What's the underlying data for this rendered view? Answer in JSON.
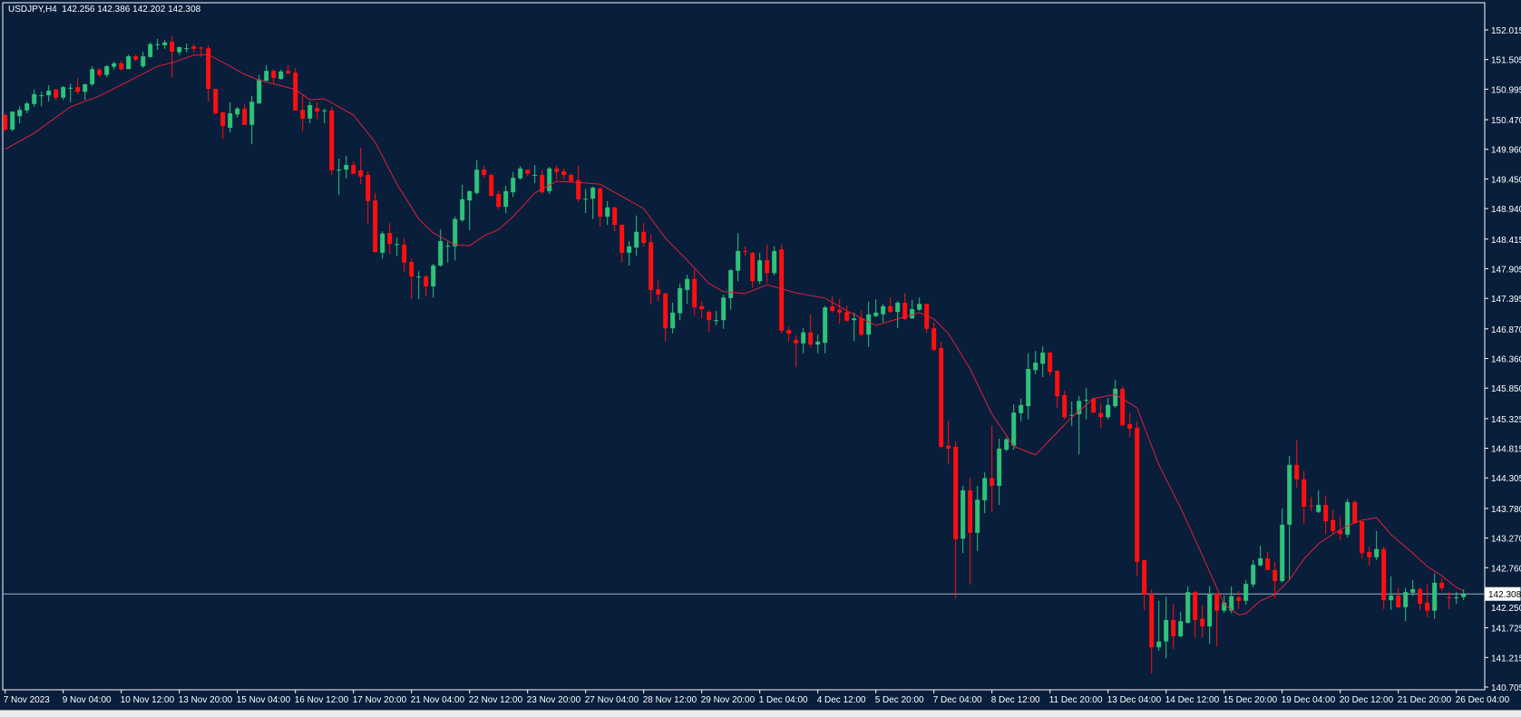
{
  "header": {
    "symbol": "USDJPY,H4",
    "ohlc_text": "142.256 142.386 142.202 142.308"
  },
  "colors": {
    "background": "#081e3b",
    "bull": "#2fc27a",
    "bear": "#ff1010",
    "ma_line": "#e0203a",
    "price_line": "#9fb0c0",
    "axis": "#ffffff"
  },
  "chart_data": {
    "type": "candlestick",
    "title": "USDJPY,H4",
    "grid": false,
    "ylim": [
      140.705,
      152.015
    ],
    "y_ticks": [
      "152.015",
      "151.505",
      "150.995",
      "150.470",
      "149.960",
      "149.450",
      "148.940",
      "148.415",
      "147.905",
      "147.395",
      "146.870",
      "146.360",
      "145.850",
      "145.325",
      "144.815",
      "144.305",
      "143.780",
      "143.270",
      "142.760",
      "142.250",
      "141.725",
      "141.215",
      "140.705"
    ],
    "x_tick_every_bars": 8,
    "x_ticks": [
      "7 Nov 2023",
      "9 Nov 04:00",
      "10 Nov 12:00",
      "13 Nov 20:00",
      "15 Nov 04:00",
      "16 Nov 12:00",
      "17 Nov 20:00",
      "21 Nov 04:00",
      "22 Nov 12:00",
      "23 Nov 20:00",
      "27 Nov 04:00",
      "28 Nov 12:00",
      "29 Nov 20:00",
      "1 Dec 04:00",
      "4 Dec 12:00",
      "5 Dec 20:00",
      "7 Dec 04:00",
      "8 Dec 12:00",
      "11 Dec 20:00",
      "13 Dec 04:00",
      "14 Dec 12:00",
      "15 Dec 20:00",
      "19 Dec 04:00",
      "20 Dec 12:00",
      "21 Dec 20:00",
      "26 Dec 04:00"
    ],
    "last_price": "142.308",
    "ohlc_fields": [
      "open",
      "high",
      "low",
      "close"
    ],
    "candles": [
      [
        150.55,
        150.58,
        150.27,
        150.3
      ],
      [
        150.3,
        150.61,
        150.27,
        150.61
      ],
      [
        150.53,
        150.7,
        150.41,
        150.64
      ],
      [
        150.63,
        150.78,
        150.58,
        150.75
      ],
      [
        150.74,
        150.99,
        150.69,
        150.91
      ],
      [
        150.89,
        150.95,
        150.7,
        150.89
      ],
      [
        150.89,
        151.06,
        150.78,
        150.97
      ],
      [
        150.99,
        151.0,
        150.8,
        150.85
      ],
      [
        150.85,
        151.05,
        150.81,
        151.03
      ],
      [
        151.02,
        151.09,
        150.77,
        151.02
      ],
      [
        151.03,
        151.19,
        150.91,
        150.95
      ],
      [
        150.95,
        151.09,
        150.81,
        151.08
      ],
      [
        151.08,
        151.39,
        151.05,
        151.34
      ],
      [
        151.33,
        151.36,
        151.2,
        151.24
      ],
      [
        151.24,
        151.41,
        151.2,
        151.39
      ],
      [
        151.38,
        151.47,
        151.33,
        151.44
      ],
      [
        151.44,
        151.48,
        151.31,
        151.34
      ],
      [
        151.34,
        151.59,
        151.34,
        151.56
      ],
      [
        151.56,
        151.59,
        151.48,
        151.5
      ],
      [
        151.39,
        151.64,
        151.36,
        151.56
      ],
      [
        151.55,
        151.8,
        151.53,
        151.77
      ],
      [
        151.77,
        151.86,
        151.67,
        151.77
      ],
      [
        151.75,
        151.84,
        151.69,
        151.8
      ],
      [
        151.81,
        151.91,
        151.19,
        151.64
      ],
      [
        151.63,
        151.72,
        151.58,
        151.72
      ],
      [
        151.7,
        151.78,
        151.63,
        151.7
      ],
      [
        151.73,
        151.77,
        151.63,
        151.69
      ],
      [
        151.71,
        151.73,
        151.55,
        151.7
      ],
      [
        151.7,
        151.75,
        150.78,
        151.0
      ],
      [
        151.0,
        151.0,
        150.56,
        150.58
      ],
      [
        150.6,
        150.6,
        150.14,
        150.36
      ],
      [
        150.33,
        150.77,
        150.25,
        150.58
      ],
      [
        150.56,
        150.69,
        150.5,
        150.66
      ],
      [
        150.66,
        150.74,
        150.38,
        150.38
      ],
      [
        150.38,
        150.88,
        150.05,
        150.78
      ],
      [
        150.75,
        151.24,
        150.74,
        151.16
      ],
      [
        151.14,
        151.41,
        151.13,
        151.31
      ],
      [
        151.31,
        151.34,
        151.09,
        151.19
      ],
      [
        151.17,
        151.33,
        151.16,
        151.3
      ],
      [
        151.31,
        151.41,
        151.24,
        151.27
      ],
      [
        151.28,
        151.36,
        150.63,
        150.63
      ],
      [
        150.64,
        150.89,
        150.27,
        150.49
      ],
      [
        150.49,
        150.78,
        150.41,
        150.72
      ],
      [
        150.67,
        150.77,
        150.47,
        150.61
      ],
      [
        150.63,
        150.66,
        150.41,
        150.63
      ],
      [
        150.63,
        150.69,
        149.52,
        149.6
      ],
      [
        149.61,
        149.8,
        149.18,
        149.61
      ],
      [
        149.61,
        149.85,
        149.46,
        149.69
      ],
      [
        149.69,
        149.75,
        149.54,
        149.54
      ],
      [
        149.6,
        149.99,
        149.36,
        149.49
      ],
      [
        149.52,
        149.58,
        148.68,
        149.07
      ],
      [
        149.08,
        149.21,
        148.19,
        148.19
      ],
      [
        148.18,
        148.55,
        148.08,
        148.51
      ],
      [
        148.52,
        148.69,
        148.16,
        148.33
      ],
      [
        148.33,
        148.44,
        148.12,
        148.33
      ],
      [
        148.32,
        148.43,
        147.85,
        148.01
      ],
      [
        148.02,
        148.08,
        147.38,
        147.77
      ],
      [
        147.77,
        147.86,
        147.38,
        147.77
      ],
      [
        147.77,
        147.8,
        147.43,
        147.6
      ],
      [
        147.6,
        147.99,
        147.41,
        147.96
      ],
      [
        147.96,
        148.58,
        147.94,
        148.38
      ],
      [
        148.3,
        148.37,
        148.01,
        148.3
      ],
      [
        148.29,
        148.8,
        148.05,
        148.76
      ],
      [
        148.74,
        149.35,
        148.71,
        149.1
      ],
      [
        149.08,
        149.25,
        148.57,
        149.24
      ],
      [
        149.21,
        149.77,
        149.18,
        149.61
      ],
      [
        149.61,
        149.68,
        149.47,
        149.52
      ],
      [
        149.52,
        149.54,
        149.14,
        149.16
      ],
      [
        149.19,
        149.25,
        148.93,
        148.97
      ],
      [
        148.97,
        149.33,
        148.86,
        149.24
      ],
      [
        149.22,
        149.57,
        149.14,
        149.47
      ],
      [
        149.46,
        149.67,
        149.44,
        149.63
      ],
      [
        149.61,
        149.61,
        149.5,
        149.54
      ],
      [
        149.52,
        149.69,
        149.38,
        149.52
      ],
      [
        149.52,
        149.6,
        149.19,
        149.22
      ],
      [
        149.24,
        149.66,
        149.19,
        149.63
      ],
      [
        149.63,
        149.68,
        149.43,
        149.57
      ],
      [
        149.58,
        149.63,
        149.44,
        149.52
      ],
      [
        149.52,
        149.54,
        149.39,
        149.41
      ],
      [
        149.43,
        149.68,
        149.05,
        149.1
      ],
      [
        149.11,
        149.28,
        148.86,
        149.11
      ],
      [
        149.11,
        149.32,
        148.76,
        149.3
      ],
      [
        149.29,
        149.3,
        148.63,
        148.8
      ],
      [
        148.8,
        149.07,
        148.66,
        148.96
      ],
      [
        148.96,
        148.97,
        148.55,
        148.66
      ],
      [
        148.66,
        148.68,
        148.01,
        148.18
      ],
      [
        148.18,
        148.38,
        147.96,
        148.29
      ],
      [
        148.27,
        148.82,
        148.13,
        148.54
      ],
      [
        148.54,
        148.69,
        148.29,
        148.35
      ],
      [
        148.36,
        148.49,
        147.3,
        147.54
      ],
      [
        147.55,
        147.72,
        147.35,
        147.46
      ],
      [
        147.48,
        147.49,
        146.65,
        146.88
      ],
      [
        146.88,
        147.32,
        146.79,
        147.15
      ],
      [
        147.14,
        147.65,
        147.02,
        147.57
      ],
      [
        147.54,
        147.8,
        147.3,
        147.73
      ],
      [
        147.73,
        147.9,
        147.1,
        147.24
      ],
      [
        147.26,
        147.35,
        147.05,
        147.21
      ],
      [
        147.16,
        147.19,
        146.82,
        147.02
      ],
      [
        147.02,
        147.18,
        146.93,
        147.02
      ],
      [
        147.02,
        147.46,
        146.87,
        147.41
      ],
      [
        147.4,
        147.9,
        147.2,
        147.88
      ],
      [
        147.87,
        148.52,
        147.69,
        148.21
      ],
      [
        148.21,
        148.29,
        148.12,
        148.2
      ],
      [
        148.18,
        148.19,
        147.58,
        147.69
      ],
      [
        147.69,
        148.18,
        147.64,
        148.05
      ],
      [
        148.05,
        148.32,
        147.66,
        147.83
      ],
      [
        147.83,
        148.29,
        147.79,
        148.21
      ],
      [
        148.24,
        148.32,
        146.79,
        146.84
      ],
      [
        146.85,
        146.91,
        146.65,
        146.79
      ],
      [
        146.68,
        146.76,
        146.21,
        146.62
      ],
      [
        146.62,
        146.88,
        146.45,
        146.81
      ],
      [
        146.81,
        147.12,
        146.55,
        146.6
      ],
      [
        146.6,
        146.77,
        146.45,
        146.65
      ],
      [
        146.63,
        147.27,
        146.45,
        147.24
      ],
      [
        147.26,
        147.43,
        147.15,
        147.18
      ],
      [
        147.2,
        147.38,
        146.96,
        147.15
      ],
      [
        147.16,
        147.27,
        146.99,
        147.01
      ],
      [
        147.02,
        147.15,
        146.66,
        147.05
      ],
      [
        147.05,
        147.19,
        146.74,
        146.77
      ],
      [
        146.77,
        147.34,
        146.56,
        147.12
      ],
      [
        147.09,
        147.38,
        147.07,
        147.15
      ],
      [
        147.12,
        147.3,
        146.98,
        147.26
      ],
      [
        147.26,
        147.41,
        147.15,
        147.16
      ],
      [
        147.16,
        147.35,
        146.88,
        147.32
      ],
      [
        147.32,
        147.49,
        147.02,
        147.04
      ],
      [
        147.05,
        147.37,
        147.04,
        147.21
      ],
      [
        147.2,
        147.41,
        147.18,
        147.3
      ],
      [
        147.3,
        147.3,
        146.8,
        146.87
      ],
      [
        146.88,
        146.98,
        146.49,
        146.51
      ],
      [
        146.54,
        146.65,
        144.81,
        144.84
      ],
      [
        144.86,
        145.29,
        144.54,
        144.81
      ],
      [
        144.84,
        144.93,
        142.23,
        143.25
      ],
      [
        143.26,
        144.17,
        143.01,
        144.09
      ],
      [
        144.09,
        144.31,
        142.47,
        143.36
      ],
      [
        143.36,
        144.17,
        143.05,
        143.93
      ],
      [
        143.92,
        144.4,
        143.7,
        144.3
      ],
      [
        144.3,
        145.21,
        143.72,
        144.17
      ],
      [
        144.17,
        144.98,
        143.84,
        144.81
      ],
      [
        144.79,
        145.0,
        144.76,
        144.97
      ],
      [
        144.86,
        145.57,
        144.79,
        145.43
      ],
      [
        145.42,
        145.67,
        145.28,
        145.56
      ],
      [
        145.54,
        146.45,
        145.31,
        146.18
      ],
      [
        146.16,
        146.49,
        146.09,
        146.29
      ],
      [
        146.27,
        146.57,
        146.04,
        146.46
      ],
      [
        146.46,
        146.48,
        146.06,
        146.13
      ],
      [
        146.15,
        146.16,
        145.51,
        145.71
      ],
      [
        145.73,
        145.81,
        145.32,
        145.35
      ],
      [
        145.39,
        145.62,
        145.2,
        145.39
      ],
      [
        145.4,
        145.71,
        144.71,
        145.63
      ],
      [
        145.65,
        145.85,
        145.31,
        145.65
      ],
      [
        145.67,
        145.68,
        145.42,
        145.43
      ],
      [
        145.42,
        145.59,
        145.17,
        145.35
      ],
      [
        145.35,
        145.68,
        145.31,
        145.56
      ],
      [
        145.54,
        145.99,
        145.51,
        145.84
      ],
      [
        145.84,
        145.88,
        145.2,
        145.21
      ],
      [
        145.23,
        145.43,
        145.01,
        145.15
      ],
      [
        145.17,
        145.28,
        142.62,
        142.86
      ],
      [
        142.89,
        142.9,
        142.03,
        142.3
      ],
      [
        142.31,
        142.39,
        140.94,
        141.39
      ],
      [
        141.39,
        142.19,
        141.33,
        141.49
      ],
      [
        141.49,
        142.26,
        141.2,
        141.86
      ],
      [
        141.86,
        142.14,
        141.36,
        141.58
      ],
      [
        141.58,
        142.0,
        141.56,
        141.84
      ],
      [
        141.81,
        142.44,
        141.8,
        142.34
      ],
      [
        142.34,
        142.36,
        141.56,
        141.86
      ],
      [
        141.88,
        142.12,
        141.56,
        141.75
      ],
      [
        141.75,
        142.44,
        141.45,
        142.31
      ],
      [
        142.31,
        142.33,
        141.41,
        142.02
      ],
      [
        142.02,
        142.28,
        141.98,
        142.16
      ],
      [
        142.02,
        142.44,
        141.98,
        142.27
      ],
      [
        142.25,
        142.36,
        142.05,
        142.19
      ],
      [
        142.19,
        142.55,
        142.12,
        142.48
      ],
      [
        142.47,
        142.89,
        142.42,
        142.81
      ],
      [
        142.8,
        143.14,
        142.78,
        142.92
      ],
      [
        142.92,
        143.03,
        142.72,
        142.72
      ],
      [
        142.72,
        142.86,
        142.23,
        142.53
      ],
      [
        142.53,
        143.78,
        142.5,
        143.5
      ],
      [
        143.5,
        144.68,
        142.55,
        144.53
      ],
      [
        144.53,
        144.95,
        144.14,
        144.28
      ],
      [
        144.28,
        144.43,
        143.51,
        143.81
      ],
      [
        143.83,
        143.98,
        143.73,
        143.82
      ],
      [
        143.72,
        144.09,
        143.7,
        143.84
      ],
      [
        143.84,
        144.0,
        143.34,
        143.56
      ],
      [
        143.58,
        143.76,
        143.34,
        143.39
      ],
      [
        143.4,
        143.64,
        143.23,
        143.34
      ],
      [
        143.33,
        143.94,
        143.28,
        143.89
      ],
      [
        143.89,
        143.92,
        143.53,
        143.53
      ],
      [
        143.56,
        143.56,
        142.92,
        143.01
      ],
      [
        143.03,
        143.12,
        142.8,
        142.94
      ],
      [
        142.94,
        143.39,
        142.89,
        143.08
      ],
      [
        143.08,
        143.12,
        142.05,
        142.2
      ],
      [
        142.2,
        142.61,
        142.03,
        142.28
      ],
      [
        142.28,
        142.42,
        142.06,
        142.08
      ],
      [
        142.08,
        142.41,
        141.84,
        142.34
      ],
      [
        142.33,
        142.55,
        142.27,
        142.39
      ],
      [
        142.39,
        142.42,
        142.03,
        142.14
      ],
      [
        142.16,
        142.47,
        141.91,
        142.02
      ],
      [
        142.02,
        142.66,
        141.88,
        142.5
      ],
      [
        142.5,
        142.58,
        142.36,
        142.41
      ],
      [
        142.25,
        142.34,
        142.05,
        142.24
      ],
      [
        142.24,
        142.34,
        142.14,
        142.25
      ],
      [
        142.256,
        142.386,
        142.202,
        142.308
      ]
    ],
    "moving_average": {
      "bar_index": [
        0,
        4,
        9,
        13,
        17,
        21,
        23,
        26,
        28,
        31,
        33,
        35,
        40,
        42,
        44,
        48,
        51,
        54,
        57,
        59,
        62,
        64,
        66,
        68,
        70,
        73,
        76,
        79,
        82,
        85,
        88,
        91,
        94,
        97,
        99,
        102,
        105,
        109,
        113,
        116,
        120,
        123,
        126,
        128,
        130,
        133,
        136,
        139,
        142,
        145,
        147,
        150,
        153,
        156,
        159,
        162,
        165,
        168,
        170,
        171,
        173,
        175,
        177,
        179,
        181,
        183,
        185,
        187,
        189,
        191,
        194,
        196,
        198,
        200,
        201
      ],
      "values": [
        149.96,
        150.24,
        150.69,
        150.88,
        151.13,
        151.39,
        151.45,
        151.58,
        151.59,
        151.39,
        151.25,
        151.15,
        150.99,
        150.81,
        150.83,
        150.55,
        150.08,
        149.36,
        148.76,
        148.52,
        148.32,
        148.3,
        148.47,
        148.58,
        148.8,
        149.21,
        149.41,
        149.39,
        149.36,
        149.15,
        148.94,
        148.43,
        148.05,
        147.65,
        147.51,
        147.48,
        147.63,
        147.49,
        147.4,
        147.18,
        146.93,
        147.04,
        147.15,
        147.04,
        146.79,
        146.18,
        145.4,
        144.85,
        144.7,
        145.09,
        145.35,
        145.67,
        145.74,
        145.51,
        144.53,
        143.79,
        142.97,
        142.13,
        141.95,
        141.97,
        142.19,
        142.3,
        142.55,
        142.91,
        143.17,
        143.34,
        143.48,
        143.58,
        143.62,
        143.33,
        143.01,
        142.78,
        142.62,
        142.42,
        142.36
      ]
    }
  }
}
